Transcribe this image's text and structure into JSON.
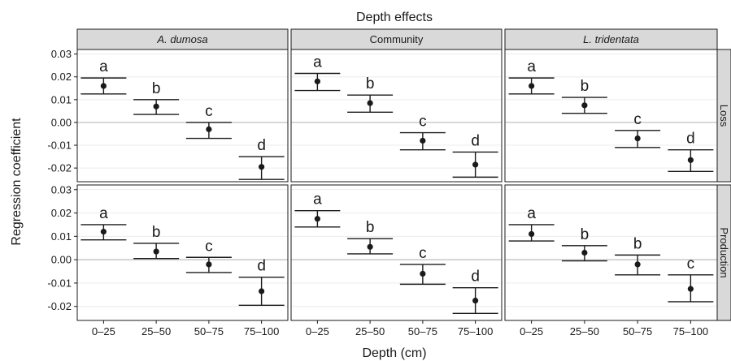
{
  "chart_data": {
    "type": "scatter",
    "title": "Depth effects",
    "xlabel": "Depth (cm)",
    "ylabel": "Regression coefficient",
    "categories": [
      "0–25",
      "25–50",
      "50–75",
      "75–100"
    ],
    "ylim": [
      -0.026,
      0.032
    ],
    "yticks": [
      0.03,
      0.02,
      0.01,
      0.0,
      -0.01,
      -0.02
    ],
    "ytick_labels": [
      "0.03",
      "0.02",
      "0.01",
      "0.00",
      "-0.01",
      "-0.02"
    ],
    "columns": [
      {
        "label": "A. dumosa",
        "italic": true
      },
      {
        "label": "Community",
        "italic": false
      },
      {
        "label": "L. tridentata",
        "italic": true
      }
    ],
    "rows": [
      "Loss",
      "Production"
    ],
    "grid": true,
    "reference_line": 0,
    "colors": {
      "panel_border": "#1a1a1a",
      "strip_fill": "#d9d9d9",
      "grid_line": "#ececec",
      "zero_line": "#bdbdbd",
      "mark": "#1a1a1a"
    },
    "panels": [
      {
        "row": "Loss",
        "column": "A. dumosa",
        "points": [
          {
            "x": "0–25",
            "y": 0.016,
            "lo": 0.0125,
            "hi": 0.0195,
            "letter": "a"
          },
          {
            "x": "25–50",
            "y": 0.007,
            "lo": 0.0035,
            "hi": 0.01,
            "letter": "b"
          },
          {
            "x": "50–75",
            "y": -0.003,
            "lo": -0.007,
            "hi": 0.0,
            "letter": "c"
          },
          {
            "x": "75–100",
            "y": -0.0195,
            "lo": -0.025,
            "hi": -0.015,
            "letter": "d"
          }
        ]
      },
      {
        "row": "Loss",
        "column": "Community",
        "points": [
          {
            "x": "0–25",
            "y": 0.018,
            "lo": 0.014,
            "hi": 0.0215,
            "letter": "a"
          },
          {
            "x": "25–50",
            "y": 0.0085,
            "lo": 0.0045,
            "hi": 0.012,
            "letter": "b"
          },
          {
            "x": "50–75",
            "y": -0.008,
            "lo": -0.012,
            "hi": -0.0045,
            "letter": "c"
          },
          {
            "x": "75–100",
            "y": -0.0185,
            "lo": -0.024,
            "hi": -0.013,
            "letter": "d"
          }
        ]
      },
      {
        "row": "Loss",
        "column": "L. tridentata",
        "points": [
          {
            "x": "0–25",
            "y": 0.016,
            "lo": 0.0125,
            "hi": 0.0195,
            "letter": "a"
          },
          {
            "x": "25–50",
            "y": 0.0075,
            "lo": 0.004,
            "hi": 0.011,
            "letter": "b"
          },
          {
            "x": "50–75",
            "y": -0.007,
            "lo": -0.011,
            "hi": -0.0035,
            "letter": "c"
          },
          {
            "x": "75–100",
            "y": -0.0165,
            "lo": -0.0215,
            "hi": -0.012,
            "letter": "d"
          }
        ]
      },
      {
        "row": "Production",
        "column": "A. dumosa",
        "points": [
          {
            "x": "0–25",
            "y": 0.012,
            "lo": 0.0085,
            "hi": 0.015,
            "letter": "a"
          },
          {
            "x": "25–50",
            "y": 0.0035,
            "lo": 0.0005,
            "hi": 0.007,
            "letter": "b"
          },
          {
            "x": "50–75",
            "y": -0.002,
            "lo": -0.0055,
            "hi": 0.001,
            "letter": "c"
          },
          {
            "x": "75–100",
            "y": -0.0135,
            "lo": -0.0195,
            "hi": -0.0075,
            "letter": "d"
          }
        ]
      },
      {
        "row": "Production",
        "column": "Community",
        "points": [
          {
            "x": "0–25",
            "y": 0.0175,
            "lo": 0.014,
            "hi": 0.021,
            "letter": "a"
          },
          {
            "x": "25–50",
            "y": 0.0055,
            "lo": 0.0025,
            "hi": 0.009,
            "letter": "b"
          },
          {
            "x": "50–75",
            "y": -0.006,
            "lo": -0.0105,
            "hi": -0.002,
            "letter": "c"
          },
          {
            "x": "75–100",
            "y": -0.0175,
            "lo": -0.023,
            "hi": -0.012,
            "letter": "d"
          }
        ]
      },
      {
        "row": "Production",
        "column": "L. tridentata",
        "points": [
          {
            "x": "0–25",
            "y": 0.011,
            "lo": 0.008,
            "hi": 0.015,
            "letter": "a"
          },
          {
            "x": "25–50",
            "y": 0.003,
            "lo": -0.0005,
            "hi": 0.006,
            "letter": "b"
          },
          {
            "x": "50–75",
            "y": -0.002,
            "lo": -0.0065,
            "hi": 0.002,
            "letter": "b"
          },
          {
            "x": "75–100",
            "y": -0.0125,
            "lo": -0.018,
            "hi": -0.0065,
            "letter": "c"
          }
        ]
      }
    ]
  }
}
